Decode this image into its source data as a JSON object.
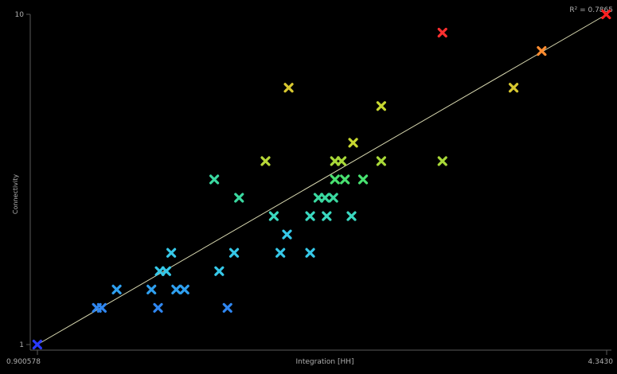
{
  "chart_data": {
    "type": "scatter",
    "xlabel": "Integration [HH]",
    "ylabel": "Connectivity",
    "x_range_labels": {
      "min": "0.900578",
      "max": "4.3430"
    },
    "y_range_labels": {
      "min": "1",
      "max": "10"
    },
    "annotation": "R² = 0.7865",
    "xlim": [
      0.9006,
      4.343
    ],
    "ylim": [
      1,
      10
    ],
    "grid": false,
    "trendline": {
      "from": [
        0.9006,
        1.0
      ],
      "to": [
        4.343,
        10.0
      ],
      "color": "#d8d8b0"
    },
    "points": [
      {
        "x": 0.9,
        "y": 1.0,
        "color": "#2a3aff"
      },
      {
        "x": 1.26,
        "y": 2.0,
        "color": "#2f86f0"
      },
      {
        "x": 1.29,
        "y": 2.0,
        "color": "#2f86f0"
      },
      {
        "x": 1.38,
        "y": 2.5,
        "color": "#2fa0f0"
      },
      {
        "x": 1.59,
        "y": 2.5,
        "color": "#2fa0f0"
      },
      {
        "x": 1.63,
        "y": 2.0,
        "color": "#2f86f0"
      },
      {
        "x": 1.64,
        "y": 3.0,
        "color": "#36c8e8"
      },
      {
        "x": 1.68,
        "y": 3.0,
        "color": "#36c8e8"
      },
      {
        "x": 1.71,
        "y": 3.5,
        "color": "#36c8e8"
      },
      {
        "x": 1.74,
        "y": 2.5,
        "color": "#2fa0f0"
      },
      {
        "x": 1.79,
        "y": 2.5,
        "color": "#2fa0f0"
      },
      {
        "x": 2.0,
        "y": 3.0,
        "color": "#36c8e8"
      },
      {
        "x": 2.05,
        "y": 2.0,
        "color": "#2f86f0"
      },
      {
        "x": 2.09,
        "y": 3.5,
        "color": "#36c8e8"
      },
      {
        "x": 1.97,
        "y": 5.5,
        "color": "#3ad8a0"
      },
      {
        "x": 2.12,
        "y": 5.0,
        "color": "#3ad8a0"
      },
      {
        "x": 2.28,
        "y": 6.0,
        "color": "#b8d838"
      },
      {
        "x": 2.33,
        "y": 4.5,
        "color": "#3ad8c0"
      },
      {
        "x": 2.37,
        "y": 3.5,
        "color": "#36c8e8"
      },
      {
        "x": 2.41,
        "y": 4.0,
        "color": "#36c8e8"
      },
      {
        "x": 2.42,
        "y": 8.0,
        "color": "#d8c830"
      },
      {
        "x": 2.55,
        "y": 3.5,
        "color": "#36c8e8"
      },
      {
        "x": 2.55,
        "y": 4.5,
        "color": "#3ad8c0"
      },
      {
        "x": 2.6,
        "y": 5.0,
        "color": "#3ad8a0"
      },
      {
        "x": 2.64,
        "y": 5.0,
        "color": "#3ad8a0"
      },
      {
        "x": 2.65,
        "y": 4.5,
        "color": "#3ad8c0"
      },
      {
        "x": 2.69,
        "y": 5.0,
        "color": "#3ad8a0"
      },
      {
        "x": 2.7,
        "y": 5.5,
        "color": "#48e070"
      },
      {
        "x": 2.7,
        "y": 6.0,
        "color": "#a8d838"
      },
      {
        "x": 2.74,
        "y": 6.0,
        "color": "#a8d838"
      },
      {
        "x": 2.76,
        "y": 5.5,
        "color": "#48e070"
      },
      {
        "x": 2.8,
        "y": 4.5,
        "color": "#3ad8c0"
      },
      {
        "x": 2.81,
        "y": 6.5,
        "color": "#c8d830"
      },
      {
        "x": 2.87,
        "y": 5.5,
        "color": "#48e070"
      },
      {
        "x": 2.98,
        "y": 6.0,
        "color": "#a8d838"
      },
      {
        "x": 2.98,
        "y": 7.5,
        "color": "#c8d830"
      },
      {
        "x": 3.35,
        "y": 6.0,
        "color": "#a8d838"
      },
      {
        "x": 3.35,
        "y": 9.5,
        "color": "#ff3030"
      },
      {
        "x": 3.78,
        "y": 8.0,
        "color": "#d8c830"
      },
      {
        "x": 3.95,
        "y": 9.0,
        "color": "#ff8c30"
      },
      {
        "x": 4.34,
        "y": 10.0,
        "color": "#ff2020"
      }
    ]
  }
}
